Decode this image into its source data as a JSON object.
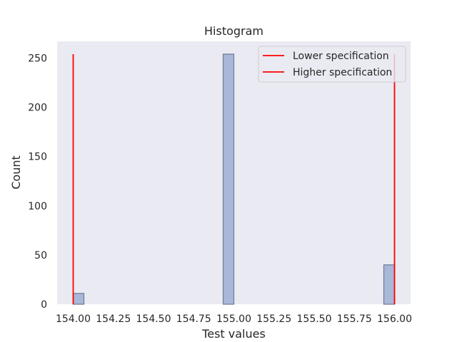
{
  "chart_data": {
    "type": "bar",
    "title": "Histogram",
    "xlabel": "Test values",
    "ylabel": "Count",
    "xlim": [
      153.9,
      156.1
    ],
    "ylim": [
      0,
      267
    ],
    "xticks": [
      154.0,
      154.25,
      154.5,
      154.75,
      155.0,
      155.25,
      155.5,
      155.75,
      156.0
    ],
    "xtick_labels": [
      "154.00",
      "154.25",
      "154.50",
      "154.75",
      "155.00",
      "155.25",
      "155.50",
      "155.75",
      "156.00"
    ],
    "yticks": [
      0,
      50,
      100,
      150,
      200,
      250
    ],
    "ytick_labels": [
      "0",
      "50",
      "100",
      "150",
      "200",
      "250"
    ],
    "bins": [
      {
        "start": 154.0,
        "end": 154.0667,
        "count": 11
      },
      {
        "start": 154.9333,
        "end": 155.0,
        "count": 254
      },
      {
        "start": 155.9333,
        "end": 156.0,
        "count": 40
      }
    ],
    "spec_lines": [
      {
        "name": "Lower specification",
        "x": 154.0,
        "ymax": 254,
        "color": "#ff0000"
      },
      {
        "name": "Higher specification",
        "x": 156.0,
        "ymax": 254,
        "color": "#ff0000"
      }
    ],
    "legend": {
      "placement": "top-right",
      "entries": [
        "Lower specification",
        "Higher specification"
      ]
    },
    "grid": false,
    "colors": {
      "bar_fill": "#a9b7d8",
      "bar_edge": "#6f7a96",
      "plot_bg": "#eaeaf2",
      "line": "#ff0000"
    }
  }
}
